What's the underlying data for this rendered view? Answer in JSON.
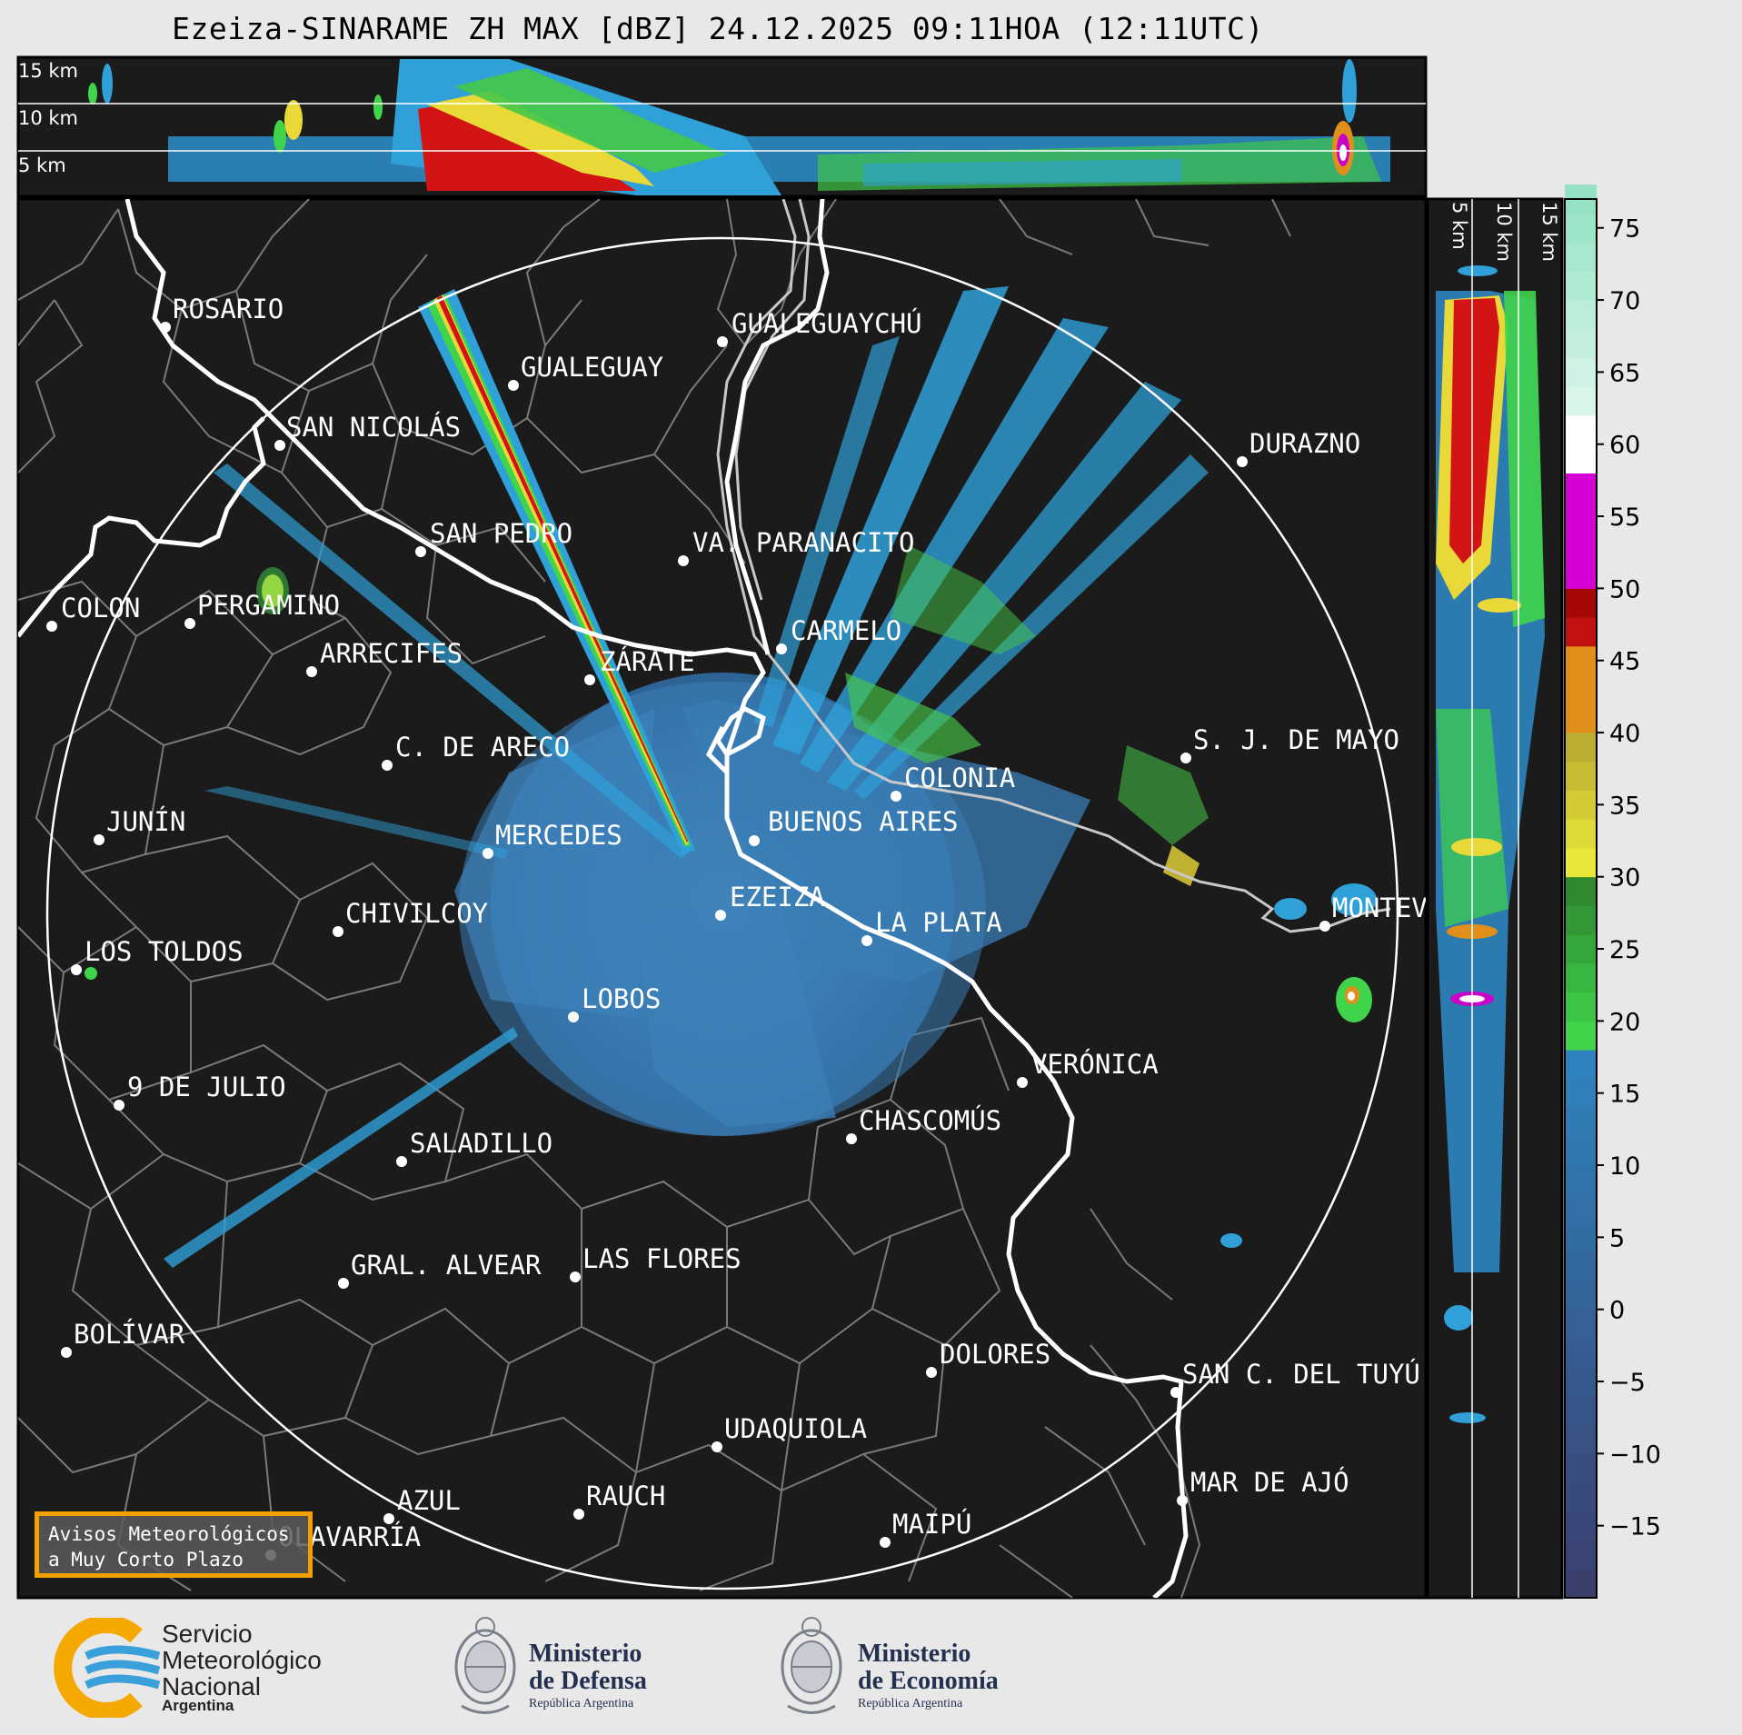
{
  "title": "Ezeiza-SINARAME ZH MAX [dBZ] 24.12.2025 09:11HOA (12:11UTC)",
  "top_panel": {
    "height_labels": [
      "15 km",
      "10 km",
      "5 km"
    ]
  },
  "side_panel": {
    "height_labels": [
      "5 km",
      "10 km",
      "15 km"
    ]
  },
  "colorbar": {
    "unit": "dBZ",
    "ticks": [
      "75",
      "70",
      "65",
      "60",
      "55",
      "50",
      "45",
      "40",
      "35",
      "30",
      "25",
      "20",
      "15",
      "10",
      "5",
      "0",
      "−5",
      "−10",
      "−15"
    ],
    "range": [
      -20,
      77
    ],
    "colors": {
      "low": "#3b3f6e",
      "blue": "#2e86c1",
      "green": "#3fd44a",
      "yellow": "#e8e83a",
      "orange": "#e0901a",
      "red": "#d11515",
      "magenta": "#d400d4",
      "white": "#ffffff",
      "teal": "#8fe0c0"
    }
  },
  "cities": [
    "ROSARIO",
    "GUALEGUAYCHÚ",
    "GUALEGUAY",
    "SAN NICOLÁS",
    "DURAZNO",
    "SAN PEDRO",
    "VA. PARANACITO",
    "COLON",
    "PERGAMINO",
    "CARMELO",
    "ARRECIFES",
    "ZÁRATE",
    "S. J. DE MAYO",
    "C. DE ARECO",
    "COLONIA",
    "JUNÍN",
    "BUENOS AIRES",
    "MERCEDES",
    "EZEIZA",
    "MONTEVIDEO",
    "CHIVILCOY",
    "LA PLATA",
    "LOS TOLDOS",
    "LOBOS",
    "VERÓNICA",
    "9 DE JULIO",
    "CHASCOMÚS",
    "SALADILLO",
    "GRAL. ALVEAR",
    "LAS FLORES",
    "BOLÍVAR",
    "DOLORES",
    "SAN C. DEL TUYÚ",
    "UDAQUIOLA",
    "MAR DE AJÓ",
    "AZUL",
    "RAUCH",
    "OLAVARRÍA",
    "MAIPÚ"
  ],
  "aviso": {
    "line1": "Avisos Meteorológicos",
    "line2": "a Muy Corto Plazo"
  },
  "logos": {
    "smn_name": [
      "Servicio",
      "Meteorológico",
      "Nacional"
    ],
    "smn_country": "Argentina",
    "defensa": [
      "Ministerio",
      "de Defensa"
    ],
    "defensa_sub": "República Argentina",
    "economia": [
      "Ministerio",
      "de Economía"
    ],
    "economia_sub": "República Argentina"
  }
}
